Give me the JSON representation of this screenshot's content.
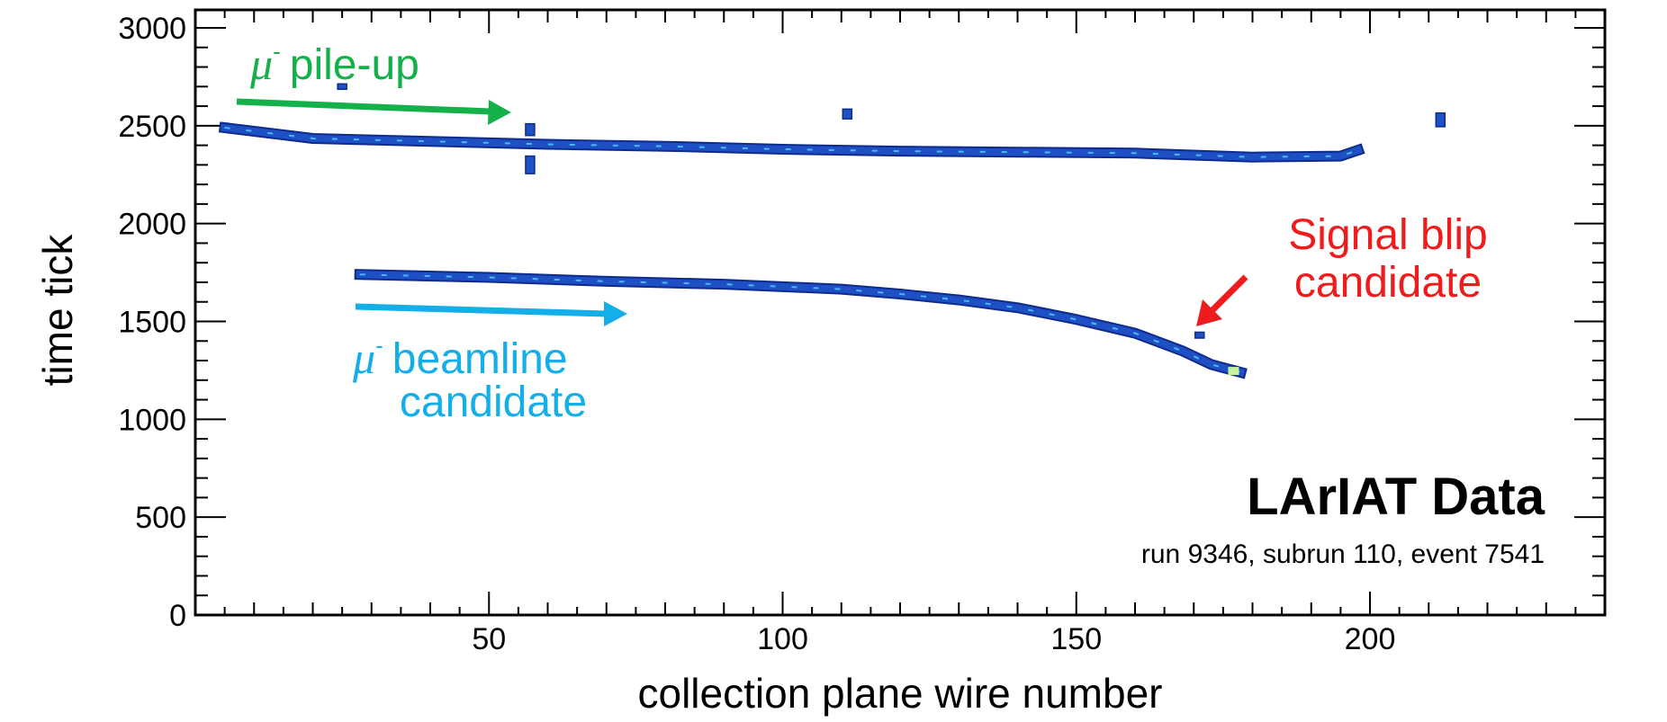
{
  "chart_data": {
    "type": "heatmap",
    "subtype": "event display",
    "xlabel": "collection plane wire number",
    "ylabel": "time tick",
    "xlim": [
      0,
      240
    ],
    "ylim": [
      0,
      3000
    ],
    "x_ticks": [
      50,
      100,
      150,
      200
    ],
    "y_ticks": [
      0,
      500,
      1000,
      1500,
      2000,
      2500,
      3000
    ],
    "colors": {
      "track": "#1f4fc4",
      "track_edge": "#0f2c8c",
      "track_hot": "#4fc3f7",
      "track_peak": "#c8f0a0",
      "green": "#14b04a",
      "cyan": "#14aee8",
      "red": "#ee1c1c",
      "frame": "#000000"
    },
    "tracks": [
      {
        "name": "mu- pile-up track",
        "points": [
          [
            5,
            2490
          ],
          [
            20,
            2435
          ],
          [
            40,
            2420
          ],
          [
            60,
            2405
          ],
          [
            80,
            2395
          ],
          [
            100,
            2380
          ],
          [
            120,
            2370
          ],
          [
            140,
            2365
          ],
          [
            160,
            2360
          ],
          [
            180,
            2340
          ],
          [
            195,
            2345
          ],
          [
            198,
            2375
          ]
        ]
      },
      {
        "name": "mu- beamline candidate track",
        "points": [
          [
            28,
            1740
          ],
          [
            50,
            1725
          ],
          [
            70,
            1705
          ],
          [
            90,
            1690
          ],
          [
            110,
            1665
          ],
          [
            120,
            1640
          ],
          [
            130,
            1610
          ],
          [
            140,
            1570
          ],
          [
            150,
            1510
          ],
          [
            160,
            1440
          ],
          [
            168,
            1350
          ],
          [
            173,
            1280
          ],
          [
            178,
            1240
          ]
        ]
      }
    ],
    "blips": [
      {
        "x": 57,
        "y": 2480,
        "h": 60
      },
      {
        "x": 57,
        "y": 2300,
        "h": 90
      },
      {
        "x": 111,
        "y": 2560,
        "h": 50
      },
      {
        "x": 212,
        "y": 2530,
        "h": 70
      },
      {
        "x": 171,
        "y": 1430,
        "h": 30
      },
      {
        "x": 25,
        "y": 2700,
        "h": 15
      }
    ],
    "annotations": [
      {
        "id": "pileup",
        "color": "green",
        "line1": "pile-up"
      },
      {
        "id": "beamline",
        "color": "cyan",
        "line1": "beamline",
        "line2": "candidate"
      },
      {
        "id": "blip",
        "color": "red",
        "line1": "Signal blip",
        "line2": "candidate"
      }
    ],
    "mu_symbol": "μ",
    "mu_charge": "-",
    "label_title": "LArIAT Data",
    "label_subtitle": "run 9346, subrun 110, event 7541"
  }
}
